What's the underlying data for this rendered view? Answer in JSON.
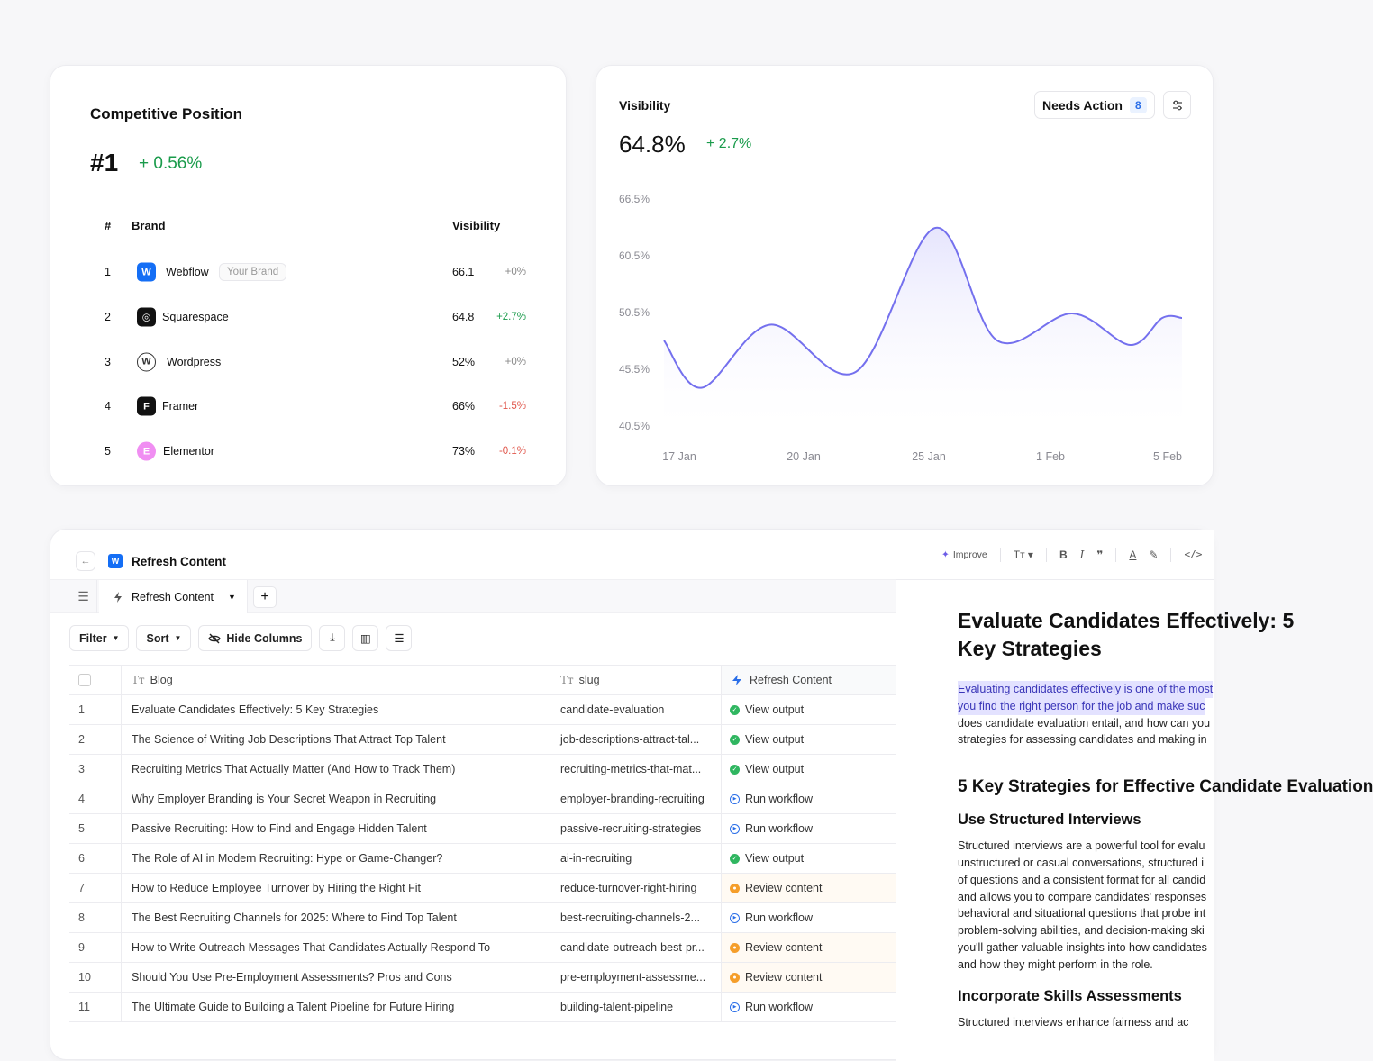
{
  "competitive": {
    "title": "Competitive Position",
    "rank": "#1",
    "rank_delta": "+ 0.56%",
    "headers": {
      "num": "#",
      "brand": "Brand",
      "visibility": "Visibility"
    },
    "rows": [
      {
        "num": "1",
        "name": "Webflow",
        "badge": "Your Brand",
        "visibility": "66.1",
        "delta": "+0%",
        "trend": "neu",
        "logo_color": "#146ef5",
        "logo_glyph": "W"
      },
      {
        "num": "2",
        "name": "Squarespace",
        "badge": "",
        "visibility": "64.8",
        "delta": "+2.7%",
        "trend": "pos",
        "logo_color": "#111111",
        "logo_glyph": "◎"
      },
      {
        "num": "3",
        "name": "Wordpress",
        "badge": "",
        "visibility": "52%",
        "delta": "+0%",
        "trend": "neu",
        "logo_color": "#ffffff",
        "logo_glyph": "W"
      },
      {
        "num": "4",
        "name": "Framer",
        "badge": "",
        "visibility": "66%",
        "delta": "-1.5%",
        "trend": "neg",
        "logo_color": "#111111",
        "logo_glyph": "F"
      },
      {
        "num": "5",
        "name": "Elementor",
        "badge": "",
        "visibility": "73%",
        "delta": "-0.1%",
        "trend": "neg",
        "logo_color": "#f08ef2",
        "logo_glyph": "E"
      }
    ]
  },
  "visibility": {
    "title": "Visibility",
    "value": "64.8%",
    "delta": "+ 2.7%",
    "needs_action_label": "Needs Action",
    "needs_action_count": "8"
  },
  "chart_data": {
    "type": "area",
    "title": "Visibility",
    "y_tick_labels": [
      "66.5%",
      "60.5%",
      "50.5%",
      "45.5%",
      "40.5%"
    ],
    "x_tick_labels": [
      "17 Jan",
      "20 Jan",
      "25 Jan",
      "1 Feb",
      "5 Feb"
    ],
    "x": [
      "17 Jan",
      "18 Jan",
      "20 Jan",
      "22 Jan",
      "25 Jan",
      "27 Jan",
      "29 Jan",
      "1 Feb",
      "3 Feb",
      "5 Feb"
    ],
    "values": [
      0.38,
      0.17,
      0.45,
      0.24,
      0.88,
      0.38,
      0.5,
      0.36,
      0.48,
      0.48
    ],
    "value_note": "",
    "color": "#7470ee",
    "fill": "#e6e5fd"
  },
  "table": {
    "title": "Refresh Content",
    "tab_label": "Refresh Content",
    "toolbar": {
      "filter": "Filter",
      "sort": "Sort",
      "hide_columns": "Hide Columns"
    },
    "columns": {
      "blog": "Blog",
      "slug": "slug",
      "action": "Refresh Content"
    },
    "rows": [
      {
        "num": "1",
        "blog": "Evaluate Candidates Effectively: 5 Key Strategies",
        "slug": "candidate-evaluation",
        "status": "view",
        "action": "View output"
      },
      {
        "num": "2",
        "blog": "The Science of Writing Job Descriptions That Attract Top Talent",
        "slug": "job-descriptions-attract-tal...",
        "status": "view",
        "action": "View output"
      },
      {
        "num": "3",
        "blog": "Recruiting Metrics That Actually Matter (And How to Track Them)",
        "slug": "recruiting-metrics-that-mat...",
        "status": "view",
        "action": "View output"
      },
      {
        "num": "4",
        "blog": "Why Employer Branding is Your Secret Weapon in Recruiting",
        "slug": "employer-branding-recruiting",
        "status": "run",
        "action": "Run workflow"
      },
      {
        "num": "5",
        "blog": "Passive Recruiting: How to Find and Engage Hidden Talent",
        "slug": "passive-recruiting-strategies",
        "status": "run",
        "action": "Run workflow"
      },
      {
        "num": "6",
        "blog": "The Role of AI in Modern Recruiting: Hype or Game-Changer?",
        "slug": "ai-in-recruiting",
        "status": "view",
        "action": "View output"
      },
      {
        "num": "7",
        "blog": "How to Reduce Employee Turnover by Hiring the Right Fit",
        "slug": "reduce-turnover-right-hiring",
        "status": "review",
        "action": "Review content"
      },
      {
        "num": "8",
        "blog": "The Best Recruiting Channels for 2025: Where to Find Top Talent",
        "slug": "best-recruiting-channels-2...",
        "status": "run",
        "action": "Run workflow"
      },
      {
        "num": "9",
        "blog": "How to Write Outreach Messages That Candidates Actually Respond To",
        "slug": "candidate-outreach-best-pr...",
        "status": "review",
        "action": "Review content"
      },
      {
        "num": "10",
        "blog": "Should You Use Pre-Employment Assessments? Pros and Cons",
        "slug": "pre-employment-assessme...",
        "status": "review",
        "action": "Review content"
      },
      {
        "num": "11",
        "blog": "The Ultimate Guide to Building a Talent Pipeline for Future Hiring",
        "slug": "building-talent-pipeline",
        "status": "run",
        "action": "Run workflow"
      }
    ]
  },
  "editor": {
    "improve_label": "Improve",
    "h1": "Evaluate Candidates Effectively: 5 Key Strategies",
    "intro_highlight": [
      "Evaluating candidates effectively is one of the most",
      "you find the right person for the job and make suc"
    ],
    "intro_rest": [
      "does candidate evaluation entail, and how can you",
      "strategies for assessing candidates and making in"
    ],
    "h2": "5 Key Strategies for Effective Candidate Evaluation",
    "h3a": "Use Structured Interviews",
    "para": [
      "Structured interviews are a powerful tool for evalu",
      "unstructured or casual conversations, structured i",
      "of questions and a consistent format for all candid",
      "and allows you to compare candidates' responses",
      "behavioral and situational questions that probe int",
      "problem-solving abilities, and decision-making ski",
      "you'll gather valuable insights into how candidates",
      "and how they might perform in the role."
    ],
    "h3b": "Incorporate Skills Assessments",
    "para2": "Structured interviews enhance fairness and ac"
  }
}
